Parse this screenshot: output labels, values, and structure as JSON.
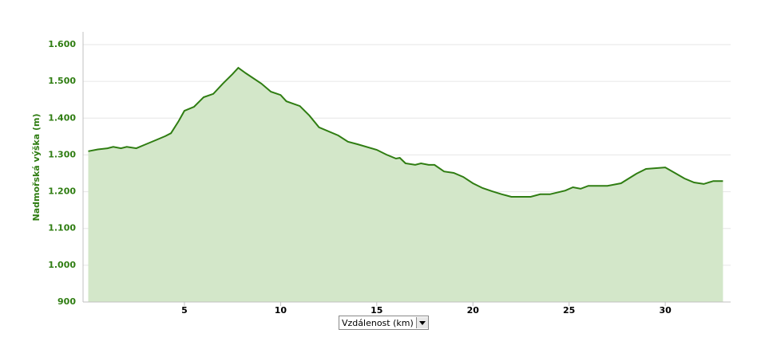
{
  "chart_data": {
    "type": "area",
    "y_label": "Nadmořská výška (m)",
    "x_label": "Vzdálenost (km)",
    "xlim": [
      -0.27,
      33.4
    ],
    "xticks": [
      5,
      10,
      15,
      20,
      25,
      30
    ],
    "ylim": [
      900,
      1600
    ],
    "yticks": [
      900,
      {
        "value": 1000,
        "label": "1.000"
      },
      {
        "value": 1100,
        "label": "1.100"
      },
      {
        "value": 1200,
        "label": "1.200"
      },
      {
        "value": 1300,
        "label": "1.300"
      },
      {
        "value": 1400,
        "label": "1.400"
      },
      {
        "value": 1500,
        "label": "1.500"
      },
      {
        "value": 1600,
        "label": "1.600"
      }
    ],
    "grid": true,
    "series": [
      {
        "color": "#2f7d12",
        "fill": "#d3e7c9",
        "x": [
          0,
          0.5,
          1,
          1.3,
          1.7,
          2,
          2.5,
          3,
          3.5,
          4,
          4.3,
          4.7,
          5,
          5.5,
          6,
          6.5,
          7,
          7.5,
          7.8,
          8.2,
          9,
          9.5,
          10,
          10.3,
          11,
          11.5,
          12,
          13,
          13.5,
          14,
          15,
          15.5,
          16,
          16.2,
          16.5,
          17,
          17.3,
          17.7,
          18,
          18.5,
          19,
          19.5,
          20,
          20.5,
          21,
          21.5,
          22,
          23,
          23.5,
          24,
          24.8,
          25.2,
          25.6,
          26,
          27,
          27.7,
          28.5,
          29,
          30,
          30.5,
          31,
          31.5,
          32,
          32.5,
          33
        ],
        "values": [
          1310,
          1315,
          1318,
          1322,
          1318,
          1322,
          1318,
          1329,
          1340,
          1351,
          1359,
          1392,
          1420,
          1431,
          1457,
          1466,
          1494,
          1520,
          1537,
          1522,
          1494,
          1472,
          1463,
          1446,
          1433,
          1407,
          1375,
          1353,
          1336,
          1329,
          1314,
          1301,
          1290,
          1292,
          1277,
          1273,
          1277,
          1273,
          1273,
          1255,
          1251,
          1240,
          1223,
          1210,
          1201,
          1193,
          1186,
          1186,
          1193,
          1193,
          1203,
          1212,
          1208,
          1216,
          1216,
          1223,
          1249,
          1262,
          1266,
          1251,
          1236,
          1225,
          1221,
          1229,
          1229
        ]
      }
    ]
  }
}
